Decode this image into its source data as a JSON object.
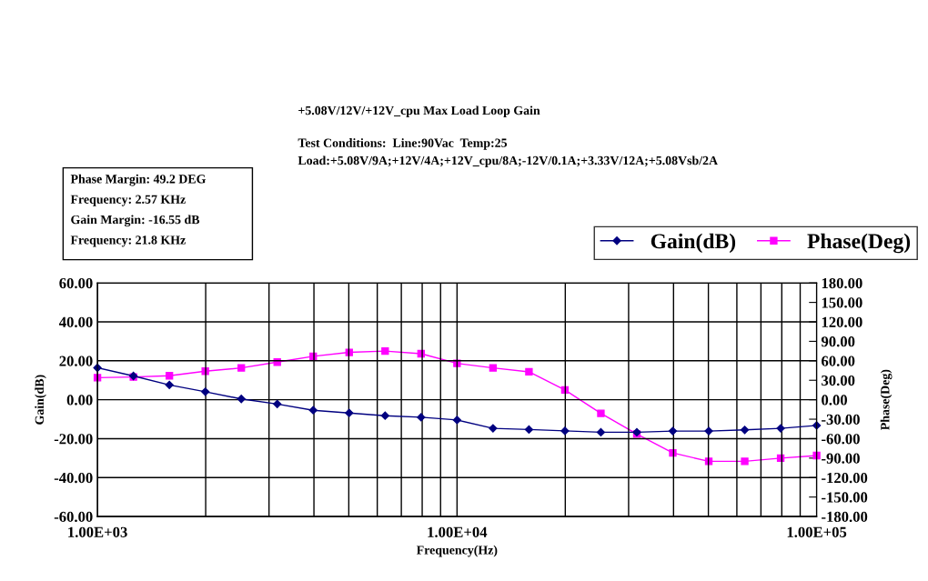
{
  "chart_data": {
    "type": "line",
    "title": "+5.08V/12V/+12V_cpu Max Load Loop Gain",
    "subtitle": "Test Conditions:  Line:90Vac  Temp:25\nLoad:+5.08V/9A;+12V/4A;+12V_cpu/8A;-12V/0.1A;+3.33V/12A;+5.08Vsb/2A",
    "annotations": [
      "Phase Margin: 49.2 DEG",
      "Frequency: 2.57 KHz",
      "Gain Margin: -16.55 dB",
      "Frequency: 21.8 KHz"
    ],
    "xlabel": "Frequency(Hz)",
    "ylabel": "Gain(dB)",
    "y2label": "Phase(Deg)",
    "log": "x",
    "grid": true,
    "legend": "top right",
    "line_style": "solid",
    "x": [
      1000,
      1259,
      1585,
      1995,
      2512,
      3162,
      3981,
      5012,
      6310,
      7943,
      10000,
      12589,
      15849,
      19953,
      25119,
      31623,
      39811,
      50119,
      63096,
      79433,
      100000
    ],
    "series": [
      {
        "name": "Gain(dB)",
        "color": "#000080",
        "marker": "diamond",
        "values": [
          16.4,
          12.2,
          7.6,
          4.1,
          0.4,
          -2.2,
          -5.4,
          -6.8,
          -8.2,
          -9.0,
          -10.4,
          -14.7,
          -15.3,
          -16.0,
          -16.7,
          -16.7,
          -16.1,
          -16.1,
          -15.5,
          -14.7,
          -13.2
        ]
      },
      {
        "name": "Phase(Deg)",
        "color": "#ff00ff",
        "marker": "square",
        "axis": "y2",
        "values": [
          34,
          35,
          37,
          44,
          49,
          58,
          67,
          73,
          75,
          71,
          56,
          49,
          43,
          15,
          -21,
          -53,
          -82,
          -95,
          -95,
          -90,
          -86
        ]
      }
    ],
    "xlim": [
      1000,
      100000
    ],
    "xticks": [
      {
        "value": 1000,
        "label": "1.00E+03"
      },
      {
        "value": 2000,
        "label": null
      },
      {
        "value": 3000,
        "label": null
      },
      {
        "value": 4000,
        "label": null
      },
      {
        "value": 5000,
        "label": null
      },
      {
        "value": 6000,
        "label": null
      },
      {
        "value": 7000,
        "label": null
      },
      {
        "value": 8000,
        "label": null
      },
      {
        "value": 9000,
        "label": null
      },
      {
        "value": 10000,
        "label": "1.00E+04"
      },
      {
        "value": 20000,
        "label": null
      },
      {
        "value": 30000,
        "label": null
      },
      {
        "value": 40000,
        "label": null
      },
      {
        "value": 50000,
        "label": null
      },
      {
        "value": 60000,
        "label": null
      },
      {
        "value": 70000,
        "label": null
      },
      {
        "value": 80000,
        "label": null
      },
      {
        "value": 90000,
        "label": null
      },
      {
        "value": 100000,
        "label": "1.00E+05"
      }
    ],
    "ylim": [
      -60,
      60
    ],
    "yticks": [
      {
        "value": -60,
        "label": "-60.00"
      },
      {
        "value": -40,
        "label": "-40.00"
      },
      {
        "value": -20,
        "label": "-20.00"
      },
      {
        "value": 0,
        "label": "0.00"
      },
      {
        "value": 20,
        "label": "20.00"
      },
      {
        "value": 40,
        "label": "40.00"
      },
      {
        "value": 60,
        "label": "60.00"
      }
    ],
    "y2lim": [
      -180,
      180
    ],
    "y2ticks": [
      {
        "value": -180,
        "label": "-180.00"
      },
      {
        "value": -150,
        "label": "-150.00"
      },
      {
        "value": -120,
        "label": "-120.00"
      },
      {
        "value": -90,
        "label": "-90.00"
      },
      {
        "value": -60,
        "label": "-60.00"
      },
      {
        "value": -30,
        "label": "-30.00"
      },
      {
        "value": 0,
        "label": "0.00"
      },
      {
        "value": 30,
        "label": "30.00"
      },
      {
        "value": 60,
        "label": "60.00"
      },
      {
        "value": 90,
        "label": "90.00"
      },
      {
        "value": 120,
        "label": "120.00"
      },
      {
        "value": 150,
        "label": "150.00"
      },
      {
        "value": 180,
        "label": "180.00"
      }
    ]
  }
}
